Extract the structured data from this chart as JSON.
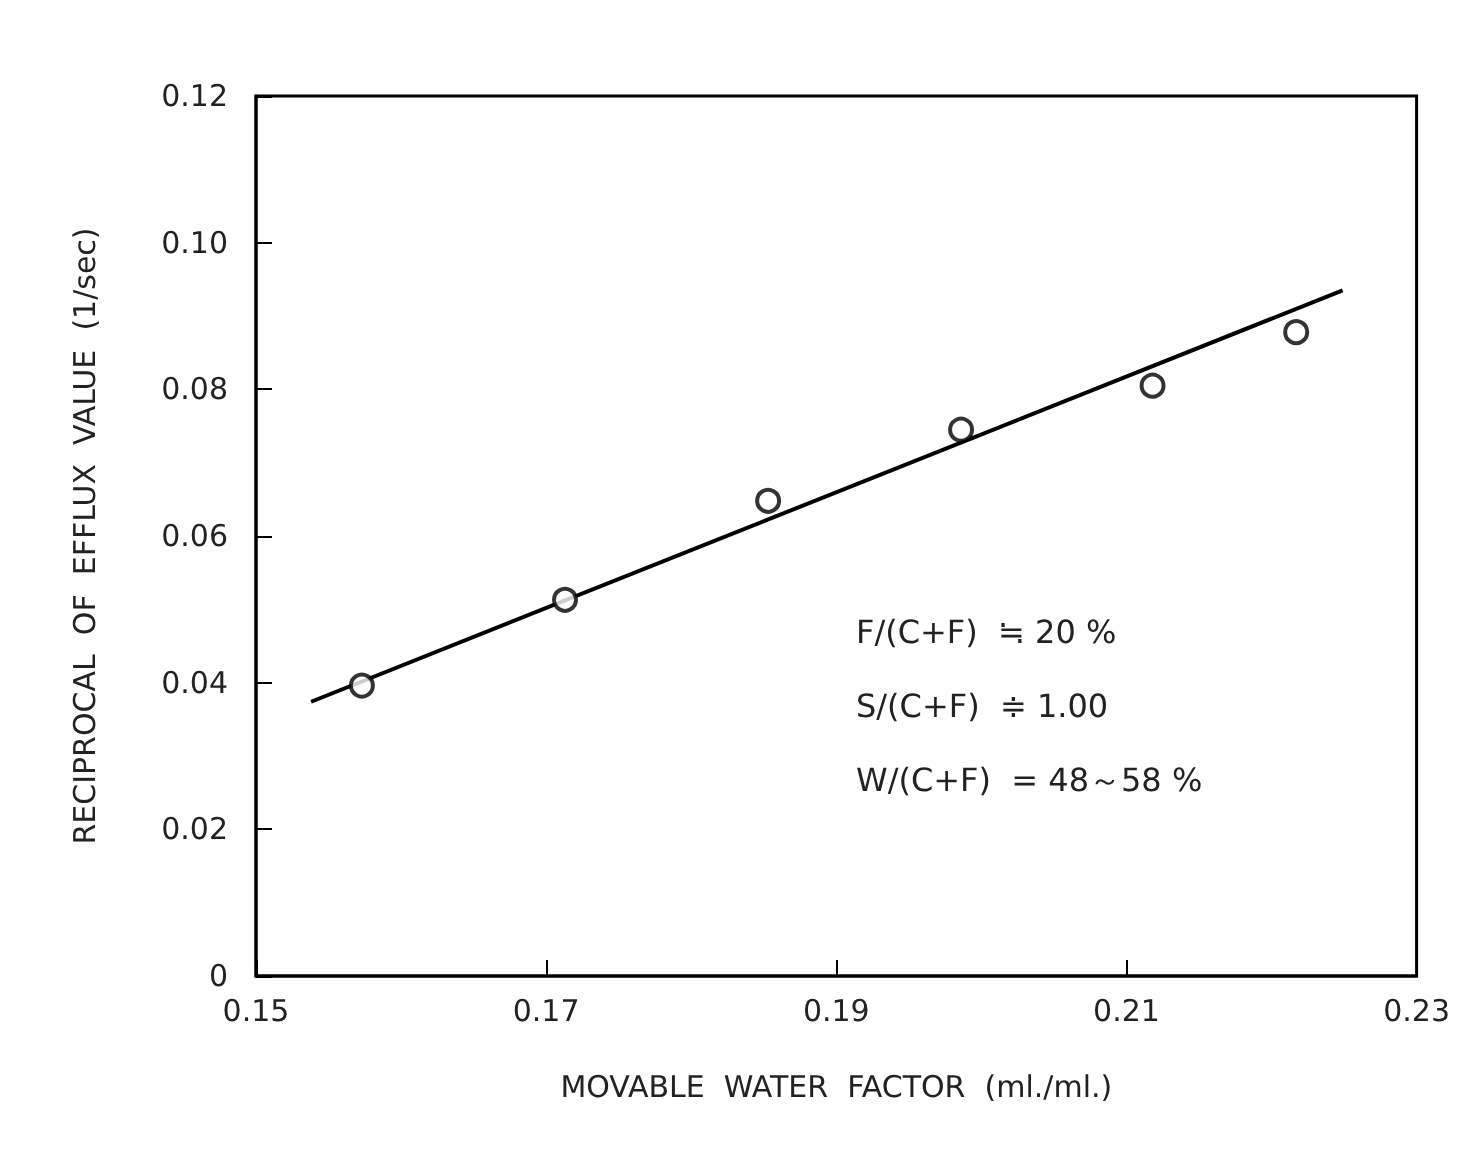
{
  "chart_data": {
    "type": "scatter",
    "xlabel": "MOVABLE  WATER  FACTOR  (ml./ml.)",
    "ylabel": "RECIPROCAL  OF  EFFLUX  VALUE  (1/sec)",
    "xlim": [
      0.15,
      0.23
    ],
    "xticks": [
      0.15,
      0.17,
      0.19,
      0.21,
      0.23
    ],
    "ylim": [
      0,
      0.12
    ],
    "yticks": [
      0,
      0.02,
      0.04,
      0.06,
      0.08,
      {
        "value": 0.1,
        "label": "0.10"
      },
      0.12
    ],
    "grid": false,
    "series": [
      {
        "color": "#000000",
        "marker": "circle",
        "x": [
          0.1573,
          0.1713,
          0.1853,
          0.1986,
          0.2118,
          0.2217
        ],
        "values": [
          0.0396,
          0.0513,
          0.0648,
          0.0745,
          0.0805,
          0.0878
        ]
      },
      {
        "type": "line",
        "color": "#000000",
        "marker": "none",
        "line_style": "solid",
        "x": [
          0.1538,
          0.2249
        ],
        "values": [
          0.0374,
          0.0935
        ]
      }
    ],
    "annotations": [
      "F/(C+F)  ≒ 20 %",
      "S/(C+F)  ≑ 1.00",
      "W/(C+F)  = 48～58 %"
    ]
  }
}
